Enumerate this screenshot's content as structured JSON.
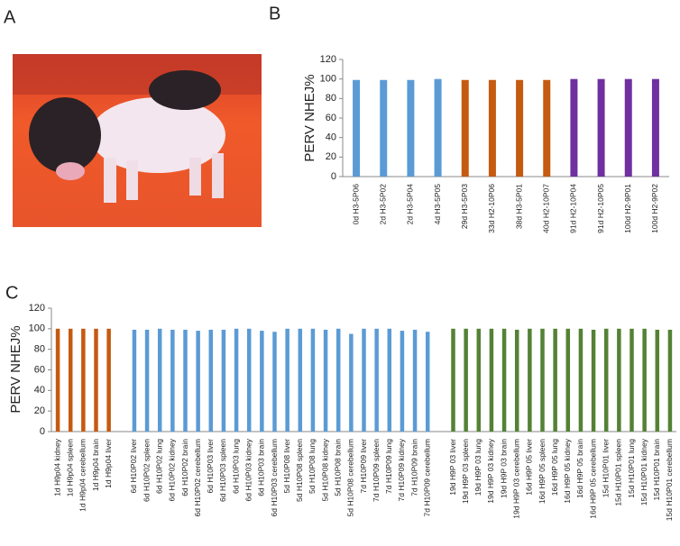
{
  "figure": {
    "panel_a_label": "A"
  },
  "chart_data": [
    {
      "type": "bar",
      "panel_label": "B",
      "y_label": "PERV NHEJ%",
      "categories": [
        "0d H3-5P06",
        "2d H3-5P02",
        "2d H3-5P04",
        "4d H3-5P05",
        "29d H3-5P03",
        "33d H2-10P06",
        "38d H3-5P01",
        "40d H2-10P07",
        "91d H2-10P04",
        "91d H2-10P05",
        "100d H2-9P01",
        "100d H2-9P02"
      ],
      "values": [
        99,
        99,
        99,
        100,
        99,
        99,
        99,
        99,
        100,
        100,
        100,
        100
      ],
      "colors": [
        "#5b9bd5",
        "#5b9bd5",
        "#5b9bd5",
        "#5b9bd5",
        "#c55a11",
        "#c55a11",
        "#c55a11",
        "#c55a11",
        "#7030a0",
        "#7030a0",
        "#7030a0",
        "#7030a0"
      ],
      "ylim": [
        0,
        120
      ],
      "yticks": [
        0,
        20,
        40,
        60,
        80,
        100,
        120
      ]
    },
    {
      "type": "bar",
      "panel_label": "C",
      "y_label": "PERV NHEJ%",
      "categories": [
        "1d H9p04 kidney",
        "1d H9p04 spleen",
        "1d H9p04 cerebellum",
        "1d H9p04 brain",
        "1d H9p04 liver",
        null,
        "6d H10P02 liver",
        "6d H10P02 spleen",
        "6d H10P02 lung",
        "6d H10P02 kidney",
        "6d H10P02 brain",
        "6d H10P02 cerebellum",
        "6d H10P03 liver",
        "6d H10P03 spleen",
        "6d H10P03 lung",
        "6d H10P03 kidney",
        "6d H10P03 brain",
        "6d H10P03 cerebellum",
        "5d H10P08 liver",
        "5d H10P08 spleen",
        "5d H10P08 lung",
        "5d H10P08 kidney",
        "5d H10P08 brain",
        "5d H10P08 cerebellum",
        "7d H10P09 liver",
        "7d H10P09 spleen",
        "7d H10P09 lung",
        "7d H10P09 kidney",
        "7d H10P09 brain",
        "7d H10P09 cerebellum",
        null,
        "19d H9P 03 liver",
        "19d H9P 03 spleen",
        "19d H9P 03 lung",
        "19d H9P 03 kidney",
        "19d H9P 03 brain",
        "19d H9P 03 cerebellum",
        "16d H9P 05 liver",
        "16d H9P 05 spleen",
        "16d H9P 05 lung",
        "16d H9P 05 kidney",
        "16d H9P 05 brain",
        "16d H9P 05 cerebellum",
        "15d H10P01 liver",
        "15d H10P01 spleen",
        "15d H10P01 lung",
        "15d H10P01 kidney",
        "15d H10P01 brain",
        "15d H10P01 cerebellum"
      ],
      "values": [
        100,
        100,
        100,
        100,
        100,
        null,
        99,
        99,
        100,
        99,
        99,
        98,
        99,
        99,
        100,
        100,
        98,
        97,
        100,
        100,
        100,
        99,
        100,
        95,
        100,
        100,
        100,
        98,
        99,
        97,
        null,
        100,
        100,
        100,
        100,
        100,
        99,
        100,
        100,
        100,
        100,
        100,
        99,
        100,
        100,
        100,
        100,
        99,
        99
      ],
      "colors": [
        "#c55a11",
        "#c55a11",
        "#c55a11",
        "#c55a11",
        "#c55a11",
        null,
        "#5b9bd5",
        "#5b9bd5",
        "#5b9bd5",
        "#5b9bd5",
        "#5b9bd5",
        "#5b9bd5",
        "#5b9bd5",
        "#5b9bd5",
        "#5b9bd5",
        "#5b9bd5",
        "#5b9bd5",
        "#5b9bd5",
        "#5b9bd5",
        "#5b9bd5",
        "#5b9bd5",
        "#5b9bd5",
        "#5b9bd5",
        "#5b9bd5",
        "#5b9bd5",
        "#5b9bd5",
        "#5b9bd5",
        "#5b9bd5",
        "#5b9bd5",
        "#5b9bd5",
        null,
        "#548235",
        "#548235",
        "#548235",
        "#548235",
        "#548235",
        "#548235",
        "#548235",
        "#548235",
        "#548235",
        "#548235",
        "#548235",
        "#548235",
        "#548235",
        "#548235",
        "#548235",
        "#548235",
        "#548235",
        "#548235"
      ],
      "ylim": [
        0,
        120
      ],
      "yticks": [
        0,
        20,
        40,
        60,
        80,
        100,
        120
      ]
    }
  ]
}
